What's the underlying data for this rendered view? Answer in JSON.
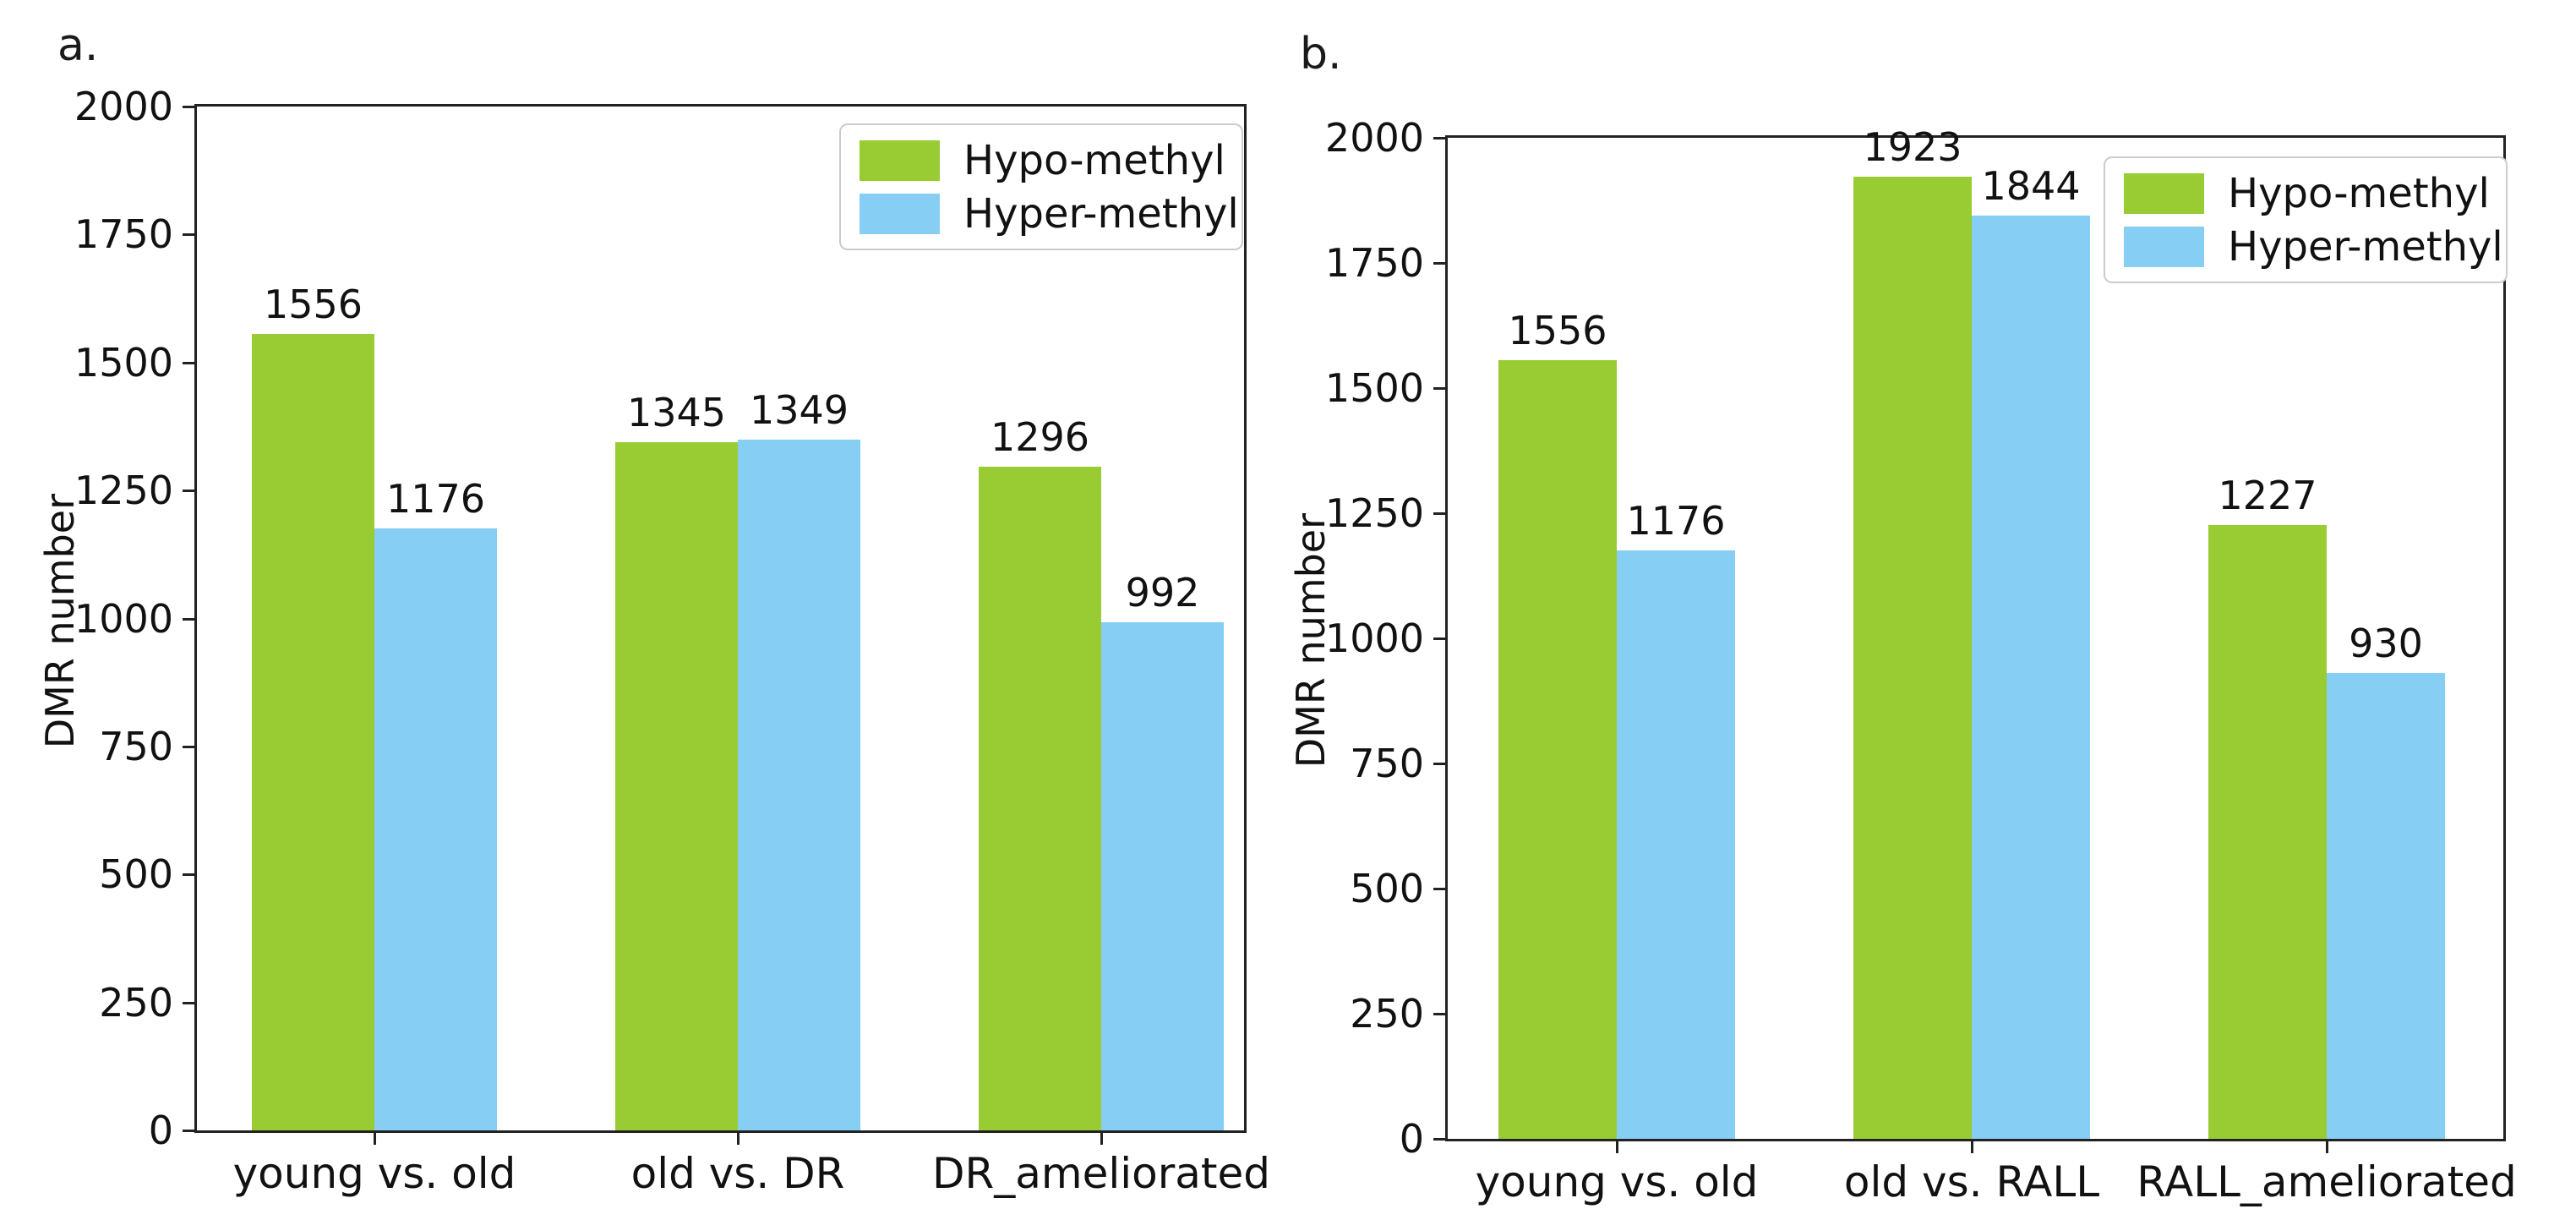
{
  "figure": {
    "background": "#ffffff",
    "axis_color": "#222222",
    "text_color": "#111111",
    "legend_border_color": "#cccccc"
  },
  "chart_data": [
    {
      "type": "bar",
      "panel_label": "a.",
      "title": "",
      "xlabel": "",
      "ylabel": "DMR number",
      "ylim": [
        0,
        2000
      ],
      "yticks": [
        0,
        250,
        500,
        750,
        1000,
        1250,
        1500,
        1750,
        2000
      ],
      "grid": false,
      "bar_labels": true,
      "legend_position": "top-right",
      "categories": [
        "young vs. old",
        "old vs. DR",
        "DR_ameliorated"
      ],
      "series": [
        {
          "name": "Hypo-methyl",
          "color": "#99CC33",
          "values": [
            1556,
            1345,
            1296
          ]
        },
        {
          "name": "Hyper-methyl",
          "color": "#87CEF5",
          "values": [
            1176,
            1349,
            992
          ]
        }
      ]
    },
    {
      "type": "bar",
      "panel_label": "b.",
      "title": "",
      "xlabel": "",
      "ylabel": "DMR number",
      "ylim": [
        0,
        2000
      ],
      "yticks": [
        0,
        250,
        500,
        750,
        1000,
        1250,
        1500,
        1750,
        2000
      ],
      "grid": false,
      "bar_labels": true,
      "legend_position": "top-right",
      "categories": [
        "young vs. old",
        "old vs. RALL",
        "RALL_ameliorated"
      ],
      "series": [
        {
          "name": "Hypo-methyl",
          "color": "#99CC33",
          "values": [
            1556,
            1923,
            1227
          ]
        },
        {
          "name": "Hyper-methyl",
          "color": "#87CEF5",
          "values": [
            1176,
            1844,
            930
          ]
        }
      ]
    }
  ]
}
